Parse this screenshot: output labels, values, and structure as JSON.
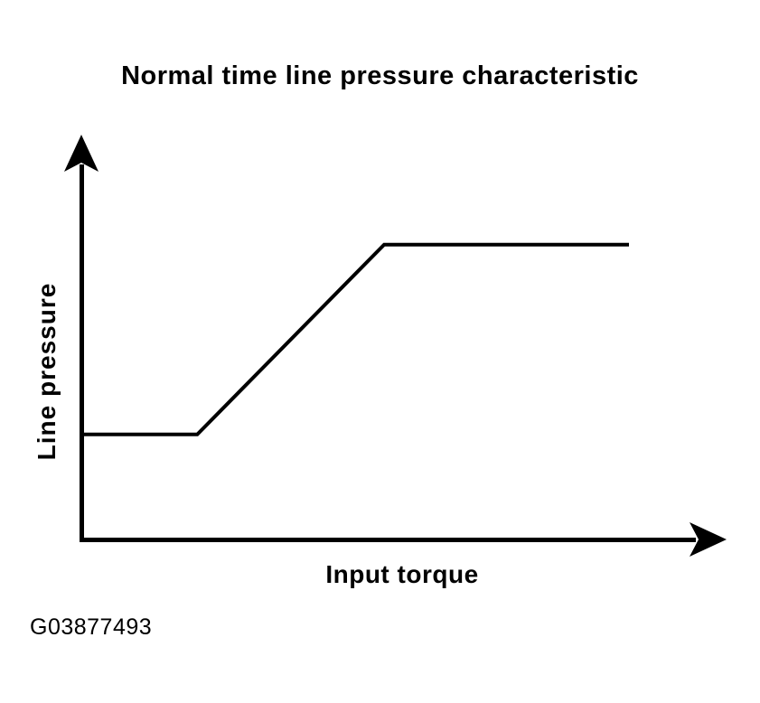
{
  "figure": {
    "title": "Normal time line pressure characteristic",
    "ylabel": "Line pressure",
    "xlabel": "Input torque",
    "code": "G03877493",
    "line_color": "#000000",
    "background_color": "#ffffff"
  },
  "chart_data": {
    "type": "line",
    "title": "Normal time line pressure characteristic",
    "xlabel": "Input torque",
    "ylabel": "Line pressure",
    "x": [
      0,
      18,
      47,
      85
    ],
    "y": [
      26,
      26,
      73,
      73
    ],
    "xlim": [
      0,
      100
    ],
    "ylim": [
      0,
      100
    ],
    "tick_labels": "none",
    "grid": false,
    "legend": "none",
    "annotation": "G03877493",
    "description": "Line pressure is constant at low input torque, increases linearly at medium torque, then saturates at a constant maximum at high torque."
  }
}
